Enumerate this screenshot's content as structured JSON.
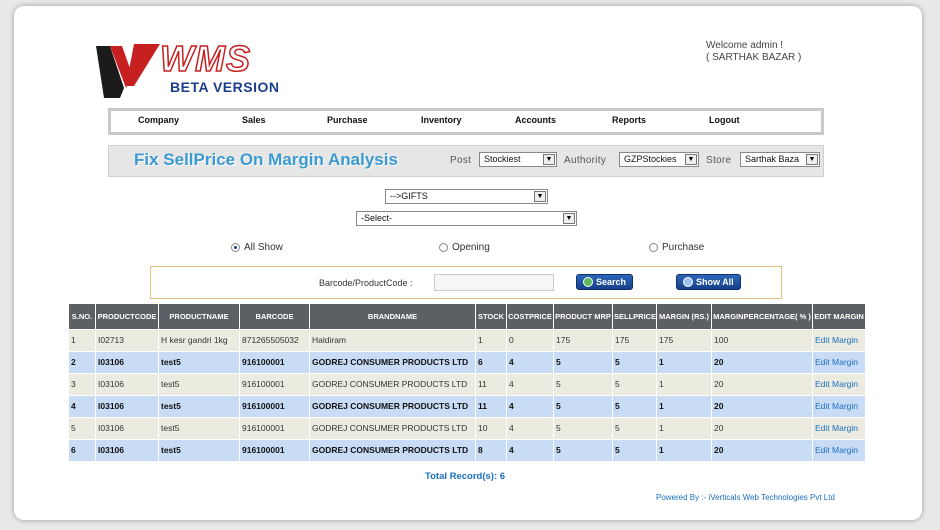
{
  "logo": {
    "title": "WMS",
    "subtitle": "BETA VERSION"
  },
  "welcome": {
    "line1": "Welcome admin !",
    "line2": "( SARTHAK BAZAR )"
  },
  "nav": [
    "Company",
    "Sales",
    "Purchase",
    "Inventory",
    "Accounts",
    "Reports",
    "Logout"
  ],
  "page": {
    "title": "Fix SellPrice On Margin Analysis",
    "post_label": "Post",
    "post_value": "Stockiest",
    "authority_label": "Authority",
    "authority_value": "GZPStockies",
    "store_label": "Store",
    "store_value": "Sarthak Baza"
  },
  "filters": {
    "category": "-->GIFTS",
    "subcategory": "-Select-"
  },
  "radios": [
    {
      "label": "All Show",
      "checked": true
    },
    {
      "label": "Opening",
      "checked": false
    },
    {
      "label": "Purchase",
      "checked": false
    }
  ],
  "search": {
    "label": "Barcode/ProductCode :",
    "value": "",
    "search_btn": "Search",
    "showall_btn": "Show All"
  },
  "table": {
    "headers": [
      "S.NO.",
      "PRODUCTCODE",
      "PRODUCTNAME",
      "BARCODE",
      "BRANDNAME",
      "STOCK",
      "COSTPRICE",
      "PRODUCT MRP",
      "SELLPRICE",
      "MARGIN (RS.)",
      "MARGINPERCENTAGE( % )",
      "EDIT MARGIN"
    ],
    "rows": [
      [
        "1",
        "I02713",
        "H kesr gandri 1kg",
        "871265505032",
        "Haldiram",
        "1",
        "0",
        "175",
        "175",
        "175",
        "100",
        "Edit Margin"
      ],
      [
        "2",
        "I03106",
        "test5",
        "916100001",
        "GODREJ CONSUMER PRODUCTS LTD",
        "6",
        "4",
        "5",
        "5",
        "1",
        "20",
        "Edit Margin"
      ],
      [
        "3",
        "I03106",
        "test5",
        "916100001",
        "GODREJ CONSUMER PRODUCTS LTD",
        "11",
        "4",
        "5",
        "5",
        "1",
        "20",
        "Edit Margin"
      ],
      [
        "4",
        "I03106",
        "test5",
        "916100001",
        "GODREJ CONSUMER PRODUCTS LTD",
        "11",
        "4",
        "5",
        "5",
        "1",
        "20",
        "Edit Margin"
      ],
      [
        "5",
        "I03106",
        "test5",
        "916100001",
        "GODREJ CONSUMER PRODUCTS LTD",
        "10",
        "4",
        "5",
        "5",
        "1",
        "20",
        "Edit Margin"
      ],
      [
        "6",
        "I03106",
        "test5",
        "916100001",
        "GODREJ CONSUMER PRODUCTS LTD",
        "8",
        "4",
        "5",
        "5",
        "1",
        "20",
        "Edit Margin"
      ]
    ]
  },
  "footer": {
    "total": "Total Record(s):  6",
    "powered": "Powered By :- iVerticals Web Technologies Pvt Ltd"
  },
  "colors": {
    "accent": "#3b9ad0",
    "header_bg": "#5c5f63",
    "row_odd": "#ecebdf",
    "row_even": "#c9dcf5",
    "logo_red": "#c62020",
    "logo_blue": "#1a3e8c"
  },
  "icons": {
    "search_button": "search-icon",
    "showall_button": "list-icon"
  }
}
